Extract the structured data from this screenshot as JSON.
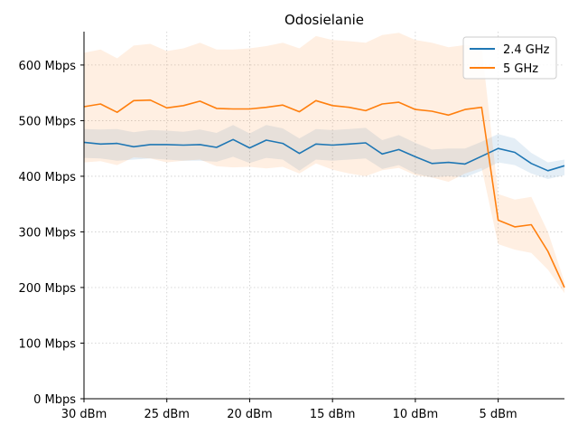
{
  "chart_data": {
    "type": "line",
    "title": "Odosielanie",
    "xlabel": "",
    "ylabel": "",
    "x_direction": "descending",
    "xlim": [
      30,
      1
    ],
    "ylim": [
      0,
      660
    ],
    "grid": true,
    "legend_position": "top-right",
    "x_ticks": [
      30,
      25,
      20,
      15,
      10,
      5
    ],
    "x_tick_labels": [
      "30 dBm",
      "25 dBm",
      "20 dBm",
      "15 dBm",
      "10 dBm",
      "5 dBm"
    ],
    "y_ticks": [
      0,
      100,
      200,
      300,
      400,
      500,
      600
    ],
    "y_tick_labels": [
      "0 Mbps",
      "100 Mbps",
      "200 Mbps",
      "300 Mbps",
      "400 Mbps",
      "500 Mbps",
      "600 Mbps"
    ],
    "x": [
      30,
      29,
      28,
      27,
      26,
      25,
      24,
      23,
      22,
      21,
      20,
      19,
      18,
      17,
      16,
      15,
      14,
      13,
      12,
      11,
      10,
      9,
      8,
      7,
      6,
      5,
      4,
      3,
      2,
      1
    ],
    "series": [
      {
        "name": "2.4 GHz",
        "color": "#1f77b4",
        "values": [
          461,
          458,
          459,
          453,
          457,
          457,
          456,
          457,
          452,
          466,
          451,
          465,
          459,
          441,
          458,
          456,
          458,
          460,
          440,
          448,
          435,
          423,
          425,
          422,
          436,
          450,
          443,
          423,
          410,
          419
        ],
        "band_lower": [
          433,
          432,
          428,
          430,
          432,
          430,
          428,
          428,
          426,
          435,
          424,
          433,
          430,
          410,
          430,
          428,
          430,
          432,
          413,
          420,
          405,
          398,
          400,
          398,
          410,
          425,
          420,
          405,
          395,
          402
        ],
        "band_upper": [
          485,
          484,
          485,
          479,
          483,
          482,
          480,
          484,
          478,
          492,
          477,
          492,
          486,
          468,
          485,
          483,
          485,
          487,
          465,
          474,
          460,
          448,
          450,
          450,
          462,
          476,
          468,
          442,
          425,
          430
        ]
      },
      {
        "name": "5 GHz",
        "color": "#ff7f0e",
        "values": [
          525,
          530,
          515,
          536,
          537,
          523,
          527,
          535,
          522,
          521,
          521,
          524,
          528,
          516,
          536,
          527,
          524,
          518,
          530,
          533,
          520,
          517,
          510,
          520,
          524,
          321,
          309,
          313,
          265,
          200
        ],
        "band_lower": [
          425,
          427,
          420,
          434,
          432,
          425,
          428,
          430,
          418,
          416,
          417,
          414,
          417,
          405,
          423,
          412,
          405,
          400,
          411,
          415,
          402,
          398,
          390,
          405,
          415,
          278,
          268,
          262,
          232,
          190
        ],
        "band_upper": [
          622,
          628,
          612,
          635,
          638,
          625,
          630,
          640,
          628,
          628,
          630,
          634,
          640,
          630,
          652,
          645,
          643,
          640,
          654,
          658,
          645,
          640,
          632,
          636,
          634,
          368,
          358,
          363,
          300,
          210
        ]
      }
    ]
  }
}
